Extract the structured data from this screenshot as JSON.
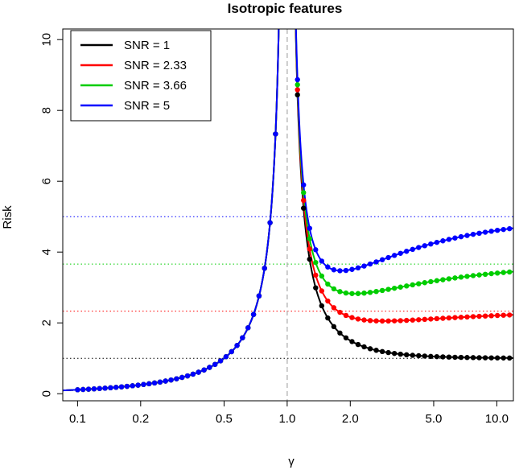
{
  "chart_data": {
    "type": "line",
    "title": "Isotropic features",
    "xlabel": "γ",
    "ylabel": "Risk",
    "x_scale": "log",
    "xlim": [
      0.085,
      12
    ],
    "ylim": [
      -0.2,
      10.3
    ],
    "x_ticks": [
      0.1,
      0.2,
      0.5,
      1.0,
      2.0,
      5.0,
      10.0
    ],
    "x_tick_labels": [
      "0.1",
      "0.2",
      "0.5",
      "1.0",
      "2.0",
      "5.0",
      "10.0"
    ],
    "y_ticks": [
      0,
      2,
      4,
      6,
      8,
      10
    ],
    "y_tick_labels": [
      "0",
      "2",
      "4",
      "6",
      "8",
      "10"
    ],
    "vertical_reference_line": {
      "x": 1.0,
      "color": "#bbbbbb",
      "style": "dashed"
    },
    "legend_position": "top-left",
    "series": [
      {
        "name": "SNR = 1",
        "snr": 1,
        "color": "#000000",
        "null_risk": 1
      },
      {
        "name": "SNR = 2.33",
        "snr": 2.33,
        "color": "#ff0000",
        "null_risk": 2.33
      },
      {
        "name": "SNR = 3.66",
        "snr": 3.66,
        "color": "#00cd00",
        "null_risk": 3.66
      },
      {
        "name": "SNR = 5",
        "snr": 5,
        "color": "#0000ff",
        "null_risk": 5
      }
    ],
    "curve_definition": {
      "underparametrized": "Risk = γ/(1−γ) for γ<1 (all SNR)",
      "overparametrized": "Risk = SNR·(1−1/γ) + 1/(γ−1) for γ>1"
    },
    "grid": false
  }
}
